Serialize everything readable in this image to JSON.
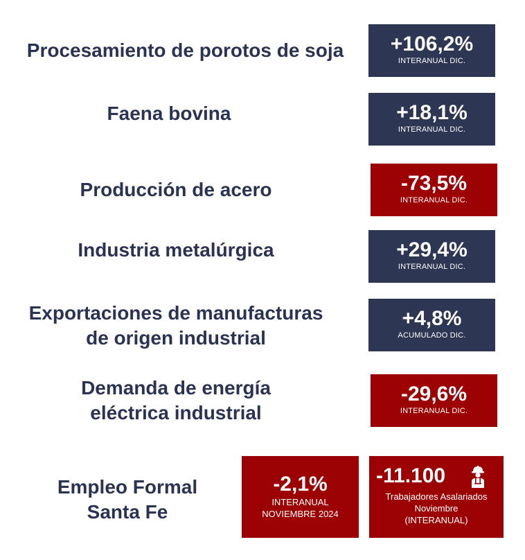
{
  "rows": [
    {
      "label": "Procesamiento de porotos de soja",
      "value": "+106,2%",
      "period": "INTERANUAL DIC.",
      "color": "#2d3653"
    },
    {
      "label": "Faena bovina",
      "value": "+18,1%",
      "period": "INTERANUAL DIC.",
      "color": "#2d3653"
    },
    {
      "label": "Producción de acero",
      "value": "-73,5%",
      "period": "INTERANUAL DIC.",
      "color": "#9c0204"
    },
    {
      "label": "Industria metalúrgica",
      "value": "+29,4%",
      "period": "INTERANUAL DIC.",
      "color": "#2d3653"
    },
    {
      "label_lines": [
        "Exportaciones de manufacturas",
        "de origen industrial"
      ],
      "value": "+4,8%",
      "period": "ACUMULADO DIC.",
      "color": "#2d3653"
    },
    {
      "label_lines": [
        "Demanda de energía",
        "eléctrica industrial"
      ],
      "value": "-29,6%",
      "period": "INTERANUAL DIC.",
      "color": "#9c0204"
    }
  ],
  "employment": {
    "label_lines": [
      "Empleo Formal",
      "Santa Fe"
    ],
    "pct": {
      "value": "-2,1%",
      "line1": "INTERANUAL",
      "line2": "NOVIEMBRE 2024"
    },
    "workers": {
      "value": "-11.100",
      "line1": "Trabajadores Asalariados",
      "line2": "Noviembre",
      "line3": "(INTERANUAL)",
      "icon": "worker-icon"
    },
    "color": "#9c0204"
  }
}
